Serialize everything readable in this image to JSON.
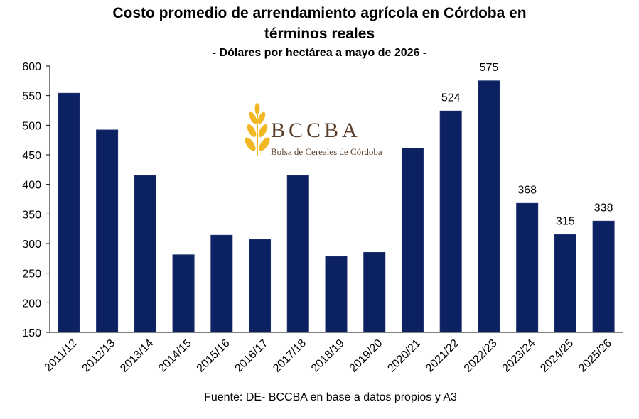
{
  "chart_data": {
    "type": "bar",
    "title_line1": "Costo promedio de arrendamiento agrícola en Córdoba en",
    "title_line2": "términos reales",
    "subtitle": "- Dólares por hectárea a mayo de 2026 -",
    "source": "Fuente: DE- BCCBA en base a datos propios y A3",
    "categories": [
      "2011/12",
      "2012/13",
      "2013/14",
      "2014/15",
      "2015/16",
      "2016/17",
      "2017/18",
      "2018/19",
      "2019/20",
      "2020/21",
      "2021/22",
      "2022/23",
      "2023/24",
      "2024/25",
      "2025/26"
    ],
    "values": [
      554,
      492,
      415,
      281,
      314,
      307,
      415,
      278,
      285,
      461,
      524,
      575,
      368,
      315,
      338
    ],
    "data_labels": [
      "",
      "",
      "",
      "",
      "",
      "",
      "",
      "",
      "",
      "",
      "524",
      "575",
      "368",
      "315",
      "338"
    ],
    "ylim": [
      150,
      600
    ],
    "yticks": [
      150,
      200,
      250,
      300,
      350,
      400,
      450,
      500,
      550,
      600
    ],
    "grid": false,
    "bar_color": "#0b2161"
  },
  "logo": {
    "name": "BCCBA",
    "subtitle": "Bolsa de Cereales de Córdoba",
    "icon": "wheat-icon"
  }
}
